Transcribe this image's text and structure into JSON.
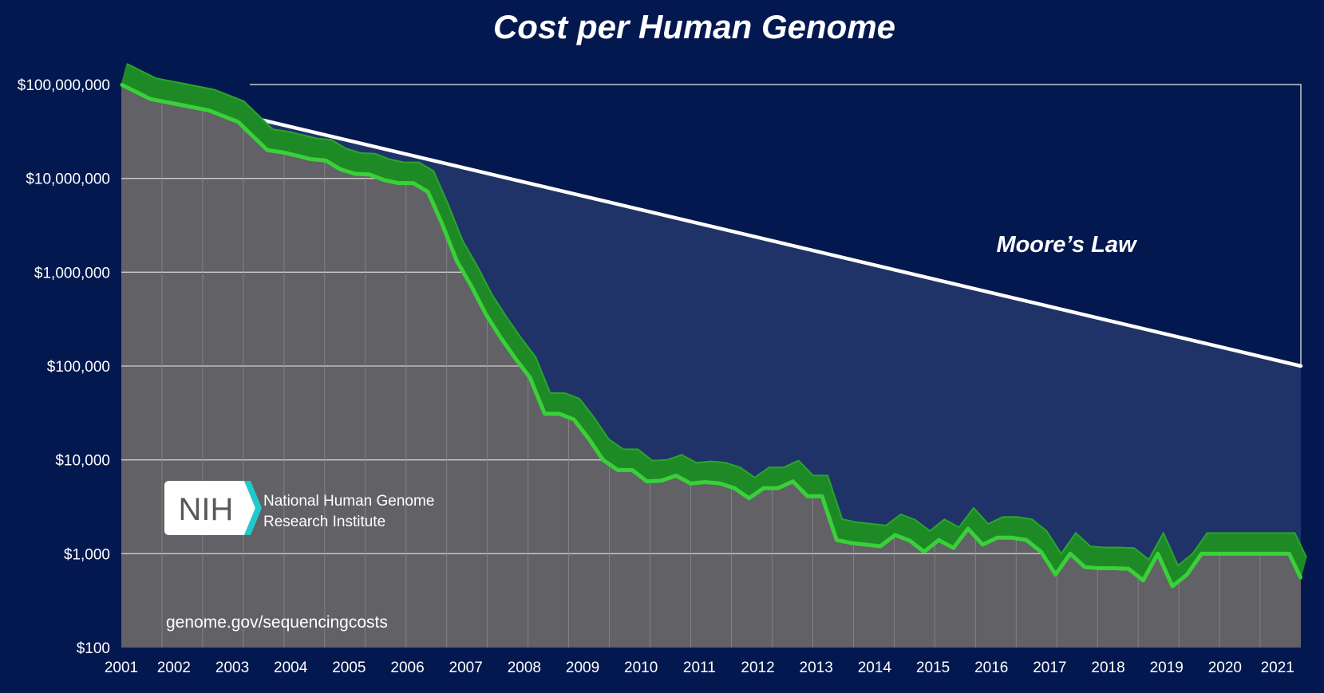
{
  "chart_data": {
    "type": "line",
    "title": "Cost per Human Genome",
    "yscale": "log",
    "ylim": [
      100,
      100000000
    ],
    "ytick_labels": [
      "$100,000,000",
      "$10,000,000",
      "$1,000,000",
      "$100,000",
      "$10,000",
      "$1,000",
      "$100"
    ],
    "ytick_values": [
      100000000,
      10000000,
      1000000,
      100000,
      10000,
      1000,
      100
    ],
    "xtick_labels": [
      "2001",
      "2002",
      "2003",
      "2004",
      "2005",
      "2006",
      "2007",
      "2008",
      "2009",
      "2010",
      "2011",
      "2012",
      "2013",
      "2014",
      "2015",
      "2016",
      "2017",
      "2018",
      "2019",
      "2020",
      "2021"
    ],
    "xtick_values": [
      2001.7,
      2002.6,
      2003.6,
      2004.6,
      2005.6,
      2006.6,
      2007.6,
      2008.6,
      2009.6,
      2010.6,
      2011.6,
      2012.6,
      2013.6,
      2014.6,
      2015.6,
      2016.6,
      2017.6,
      2018.6,
      2019.6,
      2020.6,
      2021.5
    ],
    "xlim": [
      2001.7,
      2021.9
    ],
    "series": [
      {
        "name": "Cost per Genome",
        "color": "#3ad03a",
        "x": [
          2001.7,
          2002.2,
          2002.7,
          2003.2,
          2003.7,
          2004.2,
          2004.45,
          2004.7,
          2004.95,
          2005.2,
          2005.45,
          2005.7,
          2005.95,
          2006.2,
          2006.45,
          2006.7,
          2006.95,
          2007.2,
          2007.45,
          2007.7,
          2007.95,
          2008.2,
          2008.45,
          2008.7,
          2008.95,
          2009.2,
          2009.45,
          2009.7,
          2009.95,
          2010.2,
          2010.45,
          2010.7,
          2010.95,
          2011.2,
          2011.45,
          2011.7,
          2011.95,
          2012.2,
          2012.45,
          2012.7,
          2012.95,
          2013.2,
          2013.45,
          2013.7,
          2013.95,
          2014.2,
          2014.45,
          2014.7,
          2014.95,
          2015.2,
          2015.45,
          2015.7,
          2015.95,
          2016.2,
          2016.45,
          2016.7,
          2016.95,
          2017.2,
          2017.45,
          2017.7,
          2017.95,
          2018.2,
          2018.45,
          2018.7,
          2018.95,
          2019.2,
          2019.45,
          2019.7,
          2019.95,
          2020.2,
          2020.45,
          2020.7,
          2020.95,
          2021.2,
          2021.45,
          2021.7,
          2021.9
        ],
        "values": [
          100000000,
          70000000,
          61000000,
          53000000,
          40000000,
          20000000,
          19000000,
          17500000,
          16000000,
          15500000,
          12500000,
          11200000,
          11000000,
          9600000,
          8900000,
          8900000,
          7200000,
          3200000,
          1300000,
          700000,
          350000,
          200000,
          120000,
          75000,
          31000,
          31000,
          27000,
          17000,
          10000,
          7800,
          7800,
          5900,
          6000,
          6800,
          5600,
          5800,
          5600,
          5000,
          3900,
          5000,
          5000,
          5900,
          4100,
          4100,
          1400,
          1300,
          1250,
          1200,
          1580,
          1380,
          1050,
          1400,
          1150,
          1850,
          1250,
          1480,
          1480,
          1400,
          1050,
          600,
          1000,
          720,
          700,
          700,
          690,
          520,
          1000,
          450,
          600,
          1000,
          1000,
          1000,
          1000,
          1000,
          1000,
          1000,
          550
        ]
      },
      {
        "name": "Moore's Law",
        "color": "#ffffff",
        "x": [
          2003.9,
          2021.9
        ],
        "values": [
          45000000,
          100000
        ]
      }
    ],
    "annotations": [
      "Moore’s Law"
    ]
  },
  "logo": {
    "mark": "NIH",
    "org_line1": "National Human Genome",
    "org_line2": "Research Institute"
  },
  "source_url": "genome.gov/sequencingcosts",
  "colors": {
    "background": "#03184f",
    "plot_gray": "#616166",
    "gap_fill": "#1f3368",
    "green": "#3ad03a",
    "green_dark": "#1e8a25",
    "moore": "#ffffff",
    "nih_teal": "#22c9cc"
  }
}
